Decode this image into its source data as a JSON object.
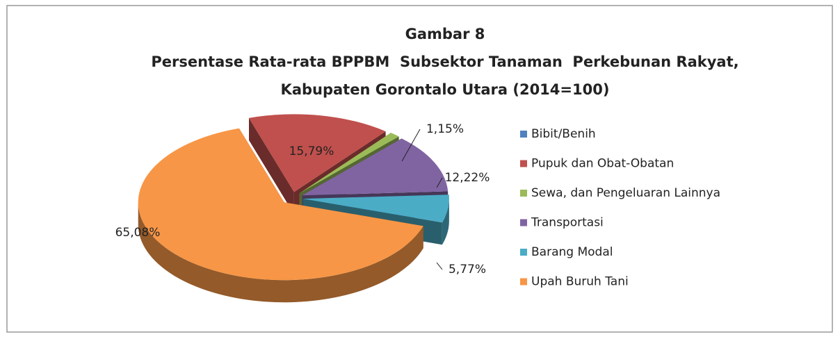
{
  "chart_data": {
    "type": "pie3d",
    "title": [
      "Gambar 8",
      "Persentase Rata-rata BPPBM  Subsektor Tanaman  Perkebunan Rakyat,",
      "Kabupaten Gorontalo Utara (2014=100)"
    ],
    "categories": [
      "Bibit/Benih",
      "Pupuk dan Obat-Obatan",
      "Sewa, dan Pengeluaran Lainnya",
      "Transportasi",
      "Barang Modal",
      "Upah Buruh Tani"
    ],
    "values": [
      0,
      15.79,
      1.15,
      12.22,
      5.77,
      65.08
    ],
    "value_labels": [
      null,
      "15,79%",
      "1,15%",
      "12,22%",
      "5,77%",
      "65,08%"
    ],
    "colors": [
      "#4f81bd",
      "#c0504d",
      "#9bbb59",
      "#8064a2",
      "#4bacc6",
      "#f79646"
    ],
    "legend": "right"
  }
}
